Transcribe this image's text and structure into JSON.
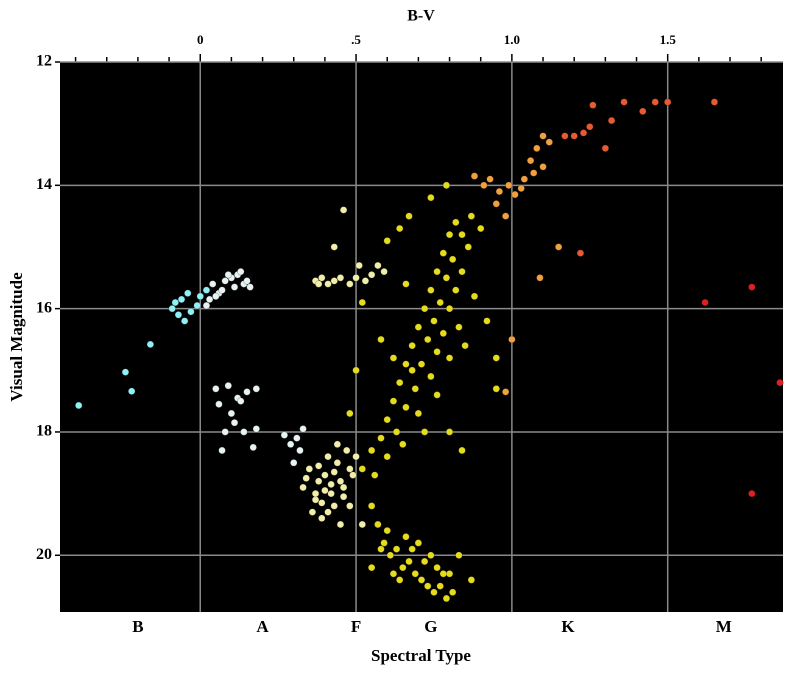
{
  "chart_data": {
    "type": "scatter",
    "title": "B-V",
    "xlabel": "Spectral Type",
    "ylabel": "Visual Magnitude",
    "xlim": [
      -0.45,
      1.87
    ],
    "ylim": [
      20.92,
      12
    ],
    "xticks": [
      0,
      {
        "value": 0.5,
        "label": ".5"
      },
      {
        "value": 1,
        "label": "1.0"
      },
      1.5
    ],
    "xminorticks": [
      -0.4,
      -0.3,
      -0.2,
      -0.1,
      0.1,
      0.2,
      0.3,
      0.4,
      0.6,
      0.7,
      0.8,
      0.9,
      1.1,
      1.2,
      1.3,
      1.4,
      1.6,
      1.7,
      1.8
    ],
    "x2ticks": [
      {
        "value": -0.2,
        "label": "B"
      },
      {
        "value": 0.2,
        "label": "A"
      },
      {
        "value": 0.5,
        "label": "F"
      },
      {
        "value": 0.74,
        "label": "G"
      },
      {
        "value": 1.18,
        "label": "K"
      },
      {
        "value": 1.68,
        "label": "M"
      }
    ],
    "yticks": [
      12,
      14,
      16,
      18,
      20
    ],
    "grid": true,
    "background": "#000000",
    "series": [
      {
        "color": "#8ff0f5",
        "x": [
          -0.39,
          -0.24,
          -0.22,
          -0.16,
          -0.09,
          -0.07,
          -0.05,
          -0.08,
          -0.06,
          -0.03,
          -0.04,
          -0.01,
          0.0,
          0.02
        ],
        "values": [
          17.57,
          17.03,
          17.34,
          16.58,
          16.0,
          16.1,
          16.2,
          15.9,
          15.85,
          16.05,
          15.75,
          15.95,
          15.8,
          15.7
        ]
      },
      {
        "color": "#e8f2f2",
        "x": [
          0.02,
          0.04,
          0.06,
          0.08,
          0.1,
          0.12,
          0.14,
          0.03,
          0.07,
          0.11,
          0.15,
          0.16,
          0.05,
          0.09,
          0.13,
          0.05,
          0.06,
          0.09,
          0.11,
          0.12,
          0.15,
          0.18,
          0.08,
          0.14,
          0.17,
          0.1,
          0.07,
          0.18,
          0.13,
          0.27,
          0.29,
          0.31,
          0.33,
          0.3,
          0.32
        ],
        "values": [
          15.95,
          15.6,
          15.75,
          15.55,
          15.5,
          15.45,
          15.6,
          15.85,
          15.7,
          15.65,
          15.55,
          15.65,
          15.8,
          15.45,
          15.4,
          17.3,
          17.55,
          17.25,
          17.85,
          17.45,
          17.35,
          17.3,
          18.0,
          18.0,
          18.25,
          17.7,
          18.3,
          17.95,
          17.5,
          18.05,
          18.2,
          18.1,
          17.95,
          18.5,
          18.3
        ]
      },
      {
        "color": "#f2eeaa",
        "x": [
          0.33,
          0.35,
          0.37,
          0.38,
          0.4,
          0.42,
          0.44,
          0.46,
          0.48,
          0.36,
          0.39,
          0.41,
          0.43,
          0.45,
          0.47,
          0.34,
          0.38,
          0.42,
          0.46,
          0.49,
          0.37,
          0.41,
          0.44,
          0.4,
          0.43,
          0.39,
          0.45,
          0.48,
          0.5,
          0.52,
          0.37,
          0.39,
          0.41,
          0.43,
          0.45,
          0.48,
          0.5,
          0.51,
          0.53,
          0.55,
          0.57,
          0.59,
          0.38,
          0.46,
          0.43
        ],
        "values": [
          18.9,
          18.6,
          19.1,
          18.8,
          18.7,
          19.0,
          18.5,
          18.9,
          18.6,
          19.3,
          19.4,
          18.4,
          19.2,
          19.5,
          18.3,
          18.75,
          18.55,
          18.85,
          19.05,
          18.7,
          19.0,
          19.3,
          18.2,
          18.95,
          18.65,
          19.15,
          18.8,
          19.2,
          18.4,
          19.5,
          15.55,
          15.5,
          15.6,
          15.55,
          15.5,
          15.6,
          15.5,
          15.3,
          15.55,
          15.45,
          15.3,
          15.4,
          15.6,
          14.4,
          15.0
        ]
      },
      {
        "color": "#e6dc1e",
        "x": [
          0.52,
          0.55,
          0.58,
          0.6,
          0.62,
          0.64,
          0.66,
          0.68,
          0.7,
          0.72,
          0.74,
          0.76,
          0.78,
          0.8,
          0.82,
          0.56,
          0.6,
          0.63,
          0.66,
          0.69,
          0.71,
          0.73,
          0.75,
          0.77,
          0.79,
          0.81,
          0.7,
          0.74,
          0.76,
          0.78,
          0.8,
          0.82,
          0.84,
          0.86,
          0.72,
          0.76,
          0.8,
          0.83,
          0.85,
          0.88,
          0.9,
          0.87,
          0.84,
          0.65,
          0.68,
          0.62,
          0.58,
          0.6,
          0.64,
          0.67,
          0.74,
          0.79,
          0.92,
          0.95,
          0.95,
          0.8,
          0.84,
          0.5,
          0.52,
          0.48,
          0.66,
          0.55,
          0.57,
          0.59,
          0.61,
          0.63,
          0.65,
          0.67,
          0.69,
          0.71,
          0.73,
          0.75,
          0.77,
          0.79,
          0.81,
          0.6,
          0.64,
          0.68,
          0.72,
          0.76,
          0.8,
          0.62,
          0.7,
          0.74,
          0.78,
          0.58,
          0.66,
          0.83,
          0.87,
          0.55
        ],
        "values": [
          18.6,
          18.3,
          18.1,
          17.8,
          17.5,
          17.2,
          16.9,
          16.6,
          16.3,
          16.0,
          15.7,
          15.4,
          15.1,
          14.8,
          14.6,
          18.7,
          18.4,
          18.0,
          17.6,
          17.3,
          16.9,
          16.5,
          16.2,
          15.9,
          15.5,
          15.2,
          17.7,
          17.1,
          16.7,
          16.4,
          16.0,
          15.7,
          15.4,
          15.0,
          18.0,
          17.4,
          16.8,
          16.3,
          16.6,
          15.8,
          14.7,
          14.5,
          14.8,
          18.2,
          17.0,
          16.8,
          16.5,
          14.9,
          14.7,
          14.5,
          14.2,
          14.0,
          16.2,
          16.8,
          17.3,
          18.0,
          18.3,
          17.0,
          15.9,
          17.7,
          15.6,
          19.2,
          19.5,
          19.8,
          20.0,
          19.9,
          20.2,
          20.1,
          20.3,
          20.4,
          20.5,
          20.6,
          20.5,
          20.7,
          20.6,
          19.6,
          20.4,
          19.9,
          20.1,
          20.2,
          20.3,
          20.3,
          19.8,
          20.0,
          20.3,
          19.9,
          19.7,
          20.0,
          20.4,
          20.2
        ]
      },
      {
        "color": "#f0a040",
        "x": [
          0.88,
          0.91,
          0.93,
          0.96,
          0.99,
          1.01,
          1.03,
          0.95,
          0.98,
          1.04,
          1.06,
          1.08,
          1.1,
          1.12,
          1.07,
          1.1,
          1.15,
          1.09,
          0.98,
          1.0
        ],
        "values": [
          13.85,
          14.0,
          13.9,
          14.1,
          14.0,
          14.15,
          14.05,
          14.3,
          14.5,
          13.9,
          13.6,
          13.4,
          13.7,
          13.3,
          13.8,
          13.2,
          15.0,
          15.5,
          17.35,
          16.5
        ]
      },
      {
        "color": "#e85a30",
        "x": [
          1.17,
          1.2,
          1.23,
          1.25,
          1.26,
          1.3,
          1.32,
          1.36,
          1.42,
          1.46,
          1.5,
          1.65,
          1.22
        ],
        "values": [
          13.2,
          13.2,
          13.15,
          13.05,
          12.7,
          13.4,
          12.95,
          12.65,
          12.8,
          12.65,
          12.65,
          12.65,
          15.1
        ]
      },
      {
        "color": "#e02020",
        "x": [
          1.62,
          1.77,
          1.86,
          1.77
        ],
        "values": [
          15.9,
          15.65,
          17.2,
          19.0
        ]
      }
    ]
  }
}
